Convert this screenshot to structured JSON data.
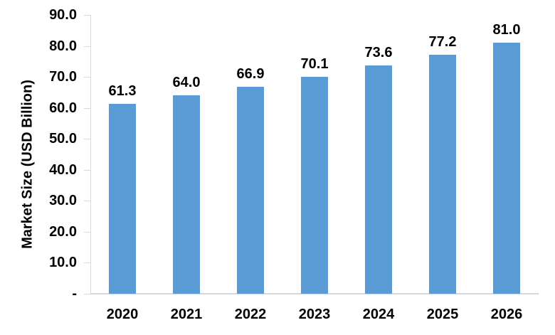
{
  "chart_data": {
    "type": "bar",
    "title": "",
    "xlabel": "",
    "ylabel": "Market Size (USD Billion)",
    "categories": [
      "2020",
      "2021",
      "2022",
      "2023",
      "2024",
      "2025",
      "2026"
    ],
    "values": [
      61.3,
      64.0,
      66.9,
      70.1,
      73.6,
      77.2,
      81.0
    ],
    "value_labels": [
      "61.3",
      "64.0",
      "66.9",
      "70.1",
      "73.6",
      "77.2",
      "81.0"
    ],
    "ylim": [
      0,
      90
    ],
    "ytick_step": 10,
    "ytick_labels": [
      "-",
      "10.0",
      "20.0",
      "30.0",
      "40.0",
      "50.0",
      "60.0",
      "70.0",
      "80.0",
      "90.0"
    ],
    "grid": false,
    "legend": "none",
    "colors": {
      "bar": "#5B9BD5",
      "axis": "#D9D9D9",
      "text": "#000000",
      "background": "#FFFFFF"
    }
  }
}
